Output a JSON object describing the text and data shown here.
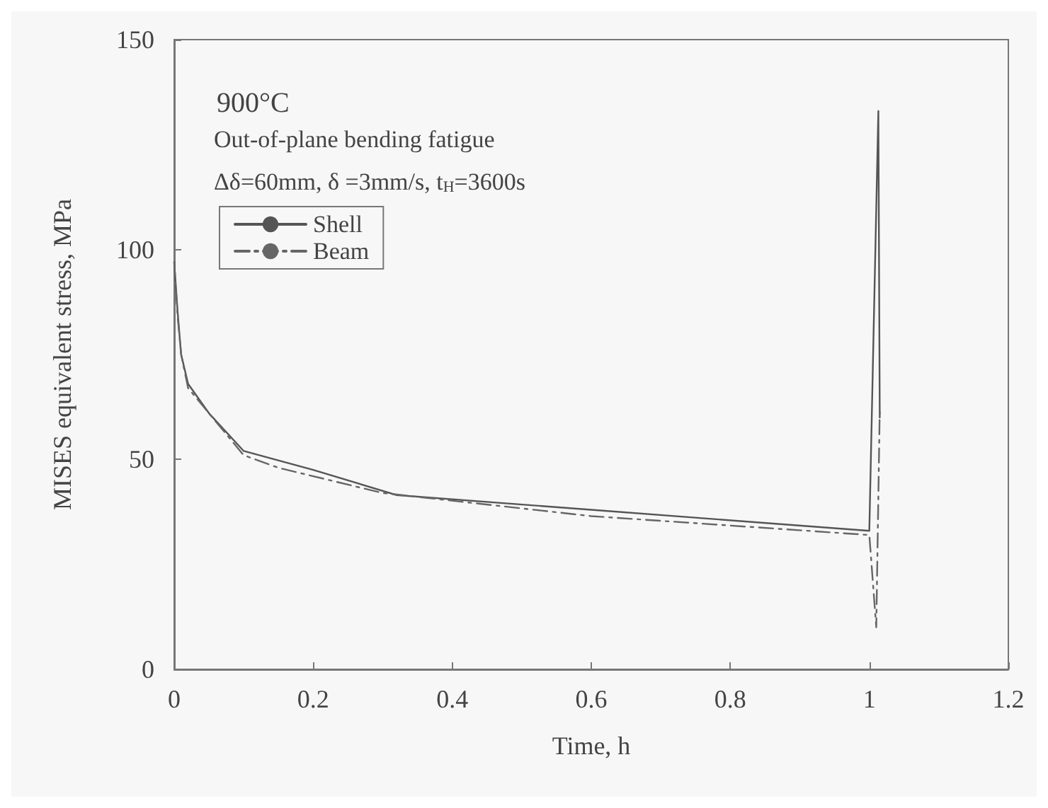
{
  "chart_data": {
    "type": "line",
    "title": "900°C",
    "xlabel": "Time, h",
    "ylabel": "MISES equivalent stress, MPa",
    "annotations": [
      "Out-of-plane bending fatigue",
      "Δδ=60mm, δ =3mm/s, t$_{H}$=3600s"
    ],
    "xlim": [
      0,
      1.2
    ],
    "xticks": [
      0,
      0.2,
      0.4,
      0.6,
      0.8,
      1,
      1.2
    ],
    "ylim": [
      0,
      150
    ],
    "yticks": [
      0,
      50,
      100,
      150
    ],
    "grid": false,
    "legend": "top left",
    "marker": "none",
    "series": [
      {
        "name": "Shell",
        "color": "#555555",
        "line_style": "solid",
        "x": [
          0,
          0.005,
          0.01,
          0.02,
          0.05,
          0.1,
          0.2,
          0.32,
          0.6,
          1.0,
          1.013,
          1.015
        ],
        "values": [
          97,
          85,
          75,
          68,
          61,
          52,
          47.5,
          41.5,
          38,
          33,
          133,
          60
        ]
      },
      {
        "name": "Beam",
        "color": "#666666",
        "line_style": "dashed",
        "x": [
          0,
          0.005,
          0.01,
          0.02,
          0.05,
          0.1,
          0.15,
          0.3,
          0.6,
          1.0,
          1.01,
          1.015
        ],
        "values": [
          97,
          84,
          75,
          67,
          61,
          51,
          48,
          42,
          36.5,
          32,
          10,
          62
        ]
      }
    ]
  }
}
